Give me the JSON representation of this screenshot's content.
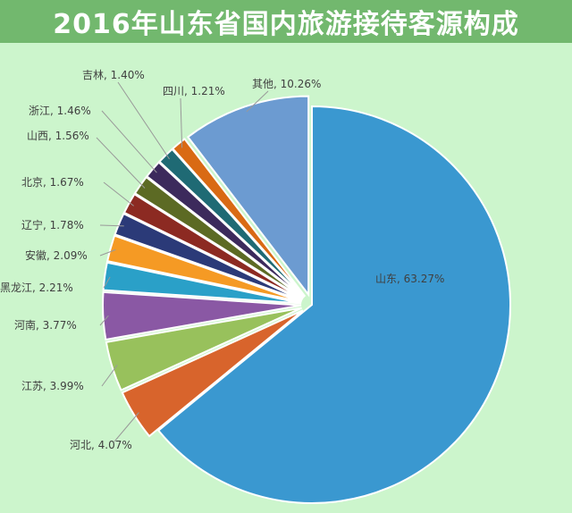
{
  "title": "2016年山东省国内旅游接待客源构成",
  "chart_data": {
    "type": "pie",
    "title": "2016年山东省国内旅游接待客源构成",
    "legend": "none",
    "slices": [
      {
        "label": "山东",
        "value": 63.27,
        "display": "山东, 63.27%",
        "color": "#3a98d0"
      },
      {
        "label": "河北",
        "value": 4.07,
        "display": "河北, 4.07%",
        "color": "#d8642c"
      },
      {
        "label": "江苏",
        "value": 3.99,
        "display": "江苏, 3.99%",
        "color": "#98c15c"
      },
      {
        "label": "河南",
        "value": 3.77,
        "display": "河南, 3.77%",
        "color": "#8a58a4"
      },
      {
        "label": "黑龙江",
        "value": 2.21,
        "display": "黑龙江, 2.21%",
        "color": "#2aa0c8"
      },
      {
        "label": "安徽",
        "value": 2.09,
        "display": "安徽, 2.09%",
        "color": "#f59a24"
      },
      {
        "label": "辽宁",
        "value": 1.78,
        "display": "辽宁, 1.78%",
        "color": "#2b3a78"
      },
      {
        "label": "北京",
        "value": 1.67,
        "display": "北京, 1.67%",
        "color": "#8c2a22"
      },
      {
        "label": "山西",
        "value": 1.56,
        "display": "山西, 1.56%",
        "color": "#5c6a24"
      },
      {
        "label": "浙江",
        "value": 1.46,
        "display": "浙江, 1.46%",
        "color": "#3c2a5c"
      },
      {
        "label": "吉林",
        "value": 1.4,
        "display": "吉林, 1.40%",
        "color": "#1f6a74"
      },
      {
        "label": "四川",
        "value": 1.21,
        "display": "四川, 1.21%",
        "color": "#d96a14"
      },
      {
        "label": "其他",
        "value": 10.26,
        "display": "其他, 10.26%",
        "color": "#6c9bd1"
      }
    ]
  }
}
